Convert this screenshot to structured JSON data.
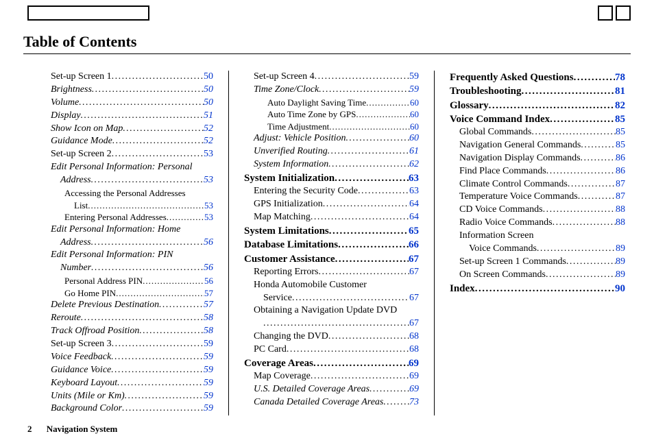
{
  "title": "Table of Contents",
  "footer_page": "2",
  "footer_label": "Navigation System",
  "link_color": "#0033cc",
  "columns": [
    [
      {
        "lvl": 1,
        "label": "Set-up Screen 1",
        "page": "50"
      },
      {
        "lvl": 2,
        "label": "Brightness",
        "page": "50"
      },
      {
        "lvl": 2,
        "label": "Volume",
        "page": "50"
      },
      {
        "lvl": 2,
        "label": "Display",
        "page": "51"
      },
      {
        "lvl": 2,
        "label": "Show Icon on Map",
        "page": "52"
      },
      {
        "lvl": 2,
        "label": "Guidance Mode",
        "page": "52"
      },
      {
        "lvl": 1,
        "label": "Set-up Screen 2",
        "page": "53"
      },
      {
        "lvl": 2,
        "wrap": true,
        "label": "Edit Personal Information: Personal",
        "label2": "Address",
        "page": "53"
      },
      {
        "lvl": 3,
        "wrap": true,
        "label": "Accessing the Personal Addresses",
        "label2": "List",
        "page": "53"
      },
      {
        "lvl": 3,
        "label": "Entering Personal Addresses",
        "page": "53"
      },
      {
        "lvl": 2,
        "wrap": true,
        "label": "Edit Personal Information: Home",
        "label2": "Address",
        "page": "56"
      },
      {
        "lvl": 2,
        "wrap": true,
        "label": "Edit Personal Information: PIN",
        "label2": "Number",
        "page": "56"
      },
      {
        "lvl": 3,
        "label": "Personal Address PIN",
        "page": "56"
      },
      {
        "lvl": 3,
        "label": "Go Home PIN",
        "page": "57"
      },
      {
        "lvl": 2,
        "label": "Delete Previous Destination",
        "page": "57"
      },
      {
        "lvl": 2,
        "label": "Reroute",
        "page": "58"
      },
      {
        "lvl": 2,
        "label": "Track Offroad Position",
        "page": "58"
      },
      {
        "lvl": 1,
        "label": "Set-up Screen 3",
        "page": "59"
      },
      {
        "lvl": 2,
        "label": "Voice Feedback",
        "page": "59"
      },
      {
        "lvl": 2,
        "label": "Guidance Voice",
        "page": "59"
      },
      {
        "lvl": 2,
        "label": "Keyboard Layout",
        "page": "59"
      },
      {
        "lvl": 2,
        "label": "Units (Mile or Km)",
        "page": "59"
      },
      {
        "lvl": 2,
        "label": "Background Color",
        "page": "59"
      }
    ],
    [
      {
        "lvl": 1,
        "label": "Set-up Screen 4",
        "page": "59"
      },
      {
        "lvl": 2,
        "label": "Time Zone/Clock",
        "page": "59"
      },
      {
        "lvl": 3,
        "label": "Auto Daylight Saving Time",
        "page": "60"
      },
      {
        "lvl": 3,
        "label": "Auto Time Zone by GPS",
        "page": "60"
      },
      {
        "lvl": 3,
        "label": "Time Adjustment",
        "page": "60"
      },
      {
        "lvl": 2,
        "label": "Adjust: Vehicle Position",
        "page": "60"
      },
      {
        "lvl": 2,
        "label": "Unverified Routing",
        "page": "61"
      },
      {
        "lvl": 2,
        "label": "System Information",
        "page": "62"
      },
      {
        "lvl": 0,
        "label": "System Initialization",
        "page": "63"
      },
      {
        "lvl": 1,
        "label": "Entering the Security Code",
        "page": "63"
      },
      {
        "lvl": 1,
        "label": "GPS Initialization",
        "page": "64"
      },
      {
        "lvl": 1,
        "label": "Map Matching",
        "page": "64"
      },
      {
        "lvl": 0,
        "label": "System Limitations",
        "page": "65"
      },
      {
        "lvl": 0,
        "label": "Database Limitations",
        "page": "66"
      },
      {
        "lvl": 0,
        "label": "Customer Assistance",
        "page": "67"
      },
      {
        "lvl": 1,
        "label": "Reporting Errors",
        "page": "67"
      },
      {
        "lvl": 1,
        "wrap": true,
        "label": "Honda Automobile Customer",
        "label2": "Service",
        "page": "67"
      },
      {
        "lvl": 1,
        "wrap": true,
        "label": "Obtaining a Navigation Update DVD",
        "label2": "",
        "page": "67"
      },
      {
        "lvl": 1,
        "label": "Changing the DVD",
        "page": "68"
      },
      {
        "lvl": 1,
        "label": "PC Card",
        "page": "68"
      },
      {
        "lvl": 0,
        "label": "Coverage Areas",
        "page": "69"
      },
      {
        "lvl": 1,
        "label": "Map Coverage",
        "page": "69"
      },
      {
        "lvl": 2,
        "label": "U.S. Detailed Coverage Areas",
        "page": "69"
      },
      {
        "lvl": 2,
        "label": "Canada Detailed Coverage Areas",
        "page": "73"
      }
    ],
    [
      {
        "lvl": 0,
        "label": "Frequently Asked Questions",
        "page": "78"
      },
      {
        "lvl": 0,
        "label": "Troubleshooting",
        "page": "81"
      },
      {
        "lvl": 0,
        "label": "Glossary",
        "page": "82"
      },
      {
        "lvl": 0,
        "label": "Voice Command Index",
        "page": "85"
      },
      {
        "lvl": 1,
        "label": "Global Commands",
        "page": "85"
      },
      {
        "lvl": 1,
        "label": "Navigation General Commands",
        "page": "85"
      },
      {
        "lvl": 1,
        "label": "Navigation Display Commands",
        "page": "86"
      },
      {
        "lvl": 1,
        "label": "Find Place Commands",
        "page": "86"
      },
      {
        "lvl": 1,
        "label": "Climate Control Commands",
        "page": "87"
      },
      {
        "lvl": 1,
        "label": "Temperature Voice Commands",
        "page": "87"
      },
      {
        "lvl": 1,
        "label": "CD Voice Commands",
        "page": "88"
      },
      {
        "lvl": 1,
        "label": "Radio Voice Commands",
        "page": "88"
      },
      {
        "lvl": 1,
        "wrap": true,
        "label": "Information Screen",
        "label2": "Voice Commands",
        "page": "89"
      },
      {
        "lvl": 1,
        "label": "Set-up Screen 1 Commands",
        "page": "89"
      },
      {
        "lvl": 1,
        "label": "On Screen Commands",
        "page": "89"
      },
      {
        "lvl": 0,
        "label": "Index",
        "page": "90"
      }
    ]
  ]
}
